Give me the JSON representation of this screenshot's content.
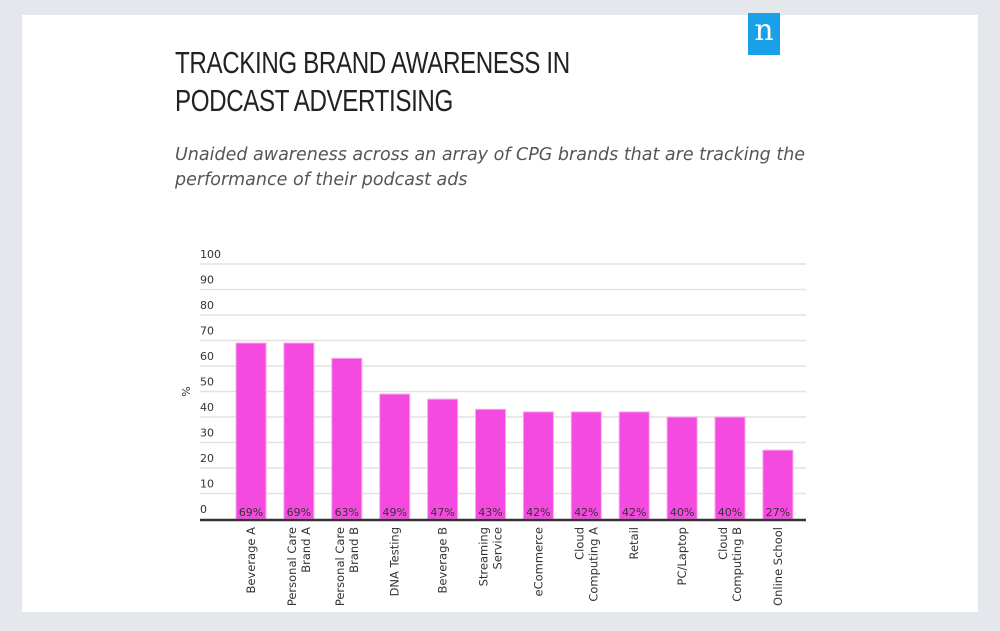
{
  "logo_text": "n",
  "colors": {
    "bar": "#f54ae0",
    "axis": "#333333",
    "grid": "#e2e2e2",
    "logo": "#1aa0e8"
  },
  "chart_data": {
    "type": "bar",
    "title": "TRACKING BRAND AWARENESS IN PODCAST ADVERTISING",
    "subtitle": "Unaided awareness across an array of CPG brands that are tracking the performance of their podcast ads",
    "xlabel": "",
    "ylabel": "%",
    "ylim": [
      0,
      100
    ],
    "yticks": [
      0,
      10,
      20,
      30,
      40,
      50,
      60,
      70,
      80,
      90,
      100
    ],
    "grid": true,
    "categories": [
      "Beverage A",
      "Personal Care Brand A",
      "Personal Care Brand B",
      "DNA Testing",
      "Beverage B",
      "Streaming Service",
      "eCommerce",
      "Cloud Computing A",
      "Retail",
      "PC/Laptop",
      "Cloud Computing B",
      "Online School"
    ],
    "category_lines": [
      [
        "Beverage A"
      ],
      [
        "Personal Care",
        "Brand A"
      ],
      [
        "Personal Care",
        "Brand B"
      ],
      [
        "DNA Testing"
      ],
      [
        "Beverage B"
      ],
      [
        "Streaming",
        "Service"
      ],
      [
        "eCommerce"
      ],
      [
        "Cloud",
        "Computing A"
      ],
      [
        "Retail"
      ],
      [
        "PC/Laptop"
      ],
      [
        "Cloud",
        "Computing B"
      ],
      [
        "Online School"
      ]
    ],
    "values": [
      69,
      69,
      63,
      49,
      47,
      43,
      42,
      42,
      42,
      40,
      40,
      27
    ],
    "data_labels": [
      "69%",
      "69%",
      "63%",
      "49%",
      "47%",
      "43%",
      "42%",
      "42%",
      "42%",
      "40%",
      "40%",
      "27%"
    ]
  }
}
